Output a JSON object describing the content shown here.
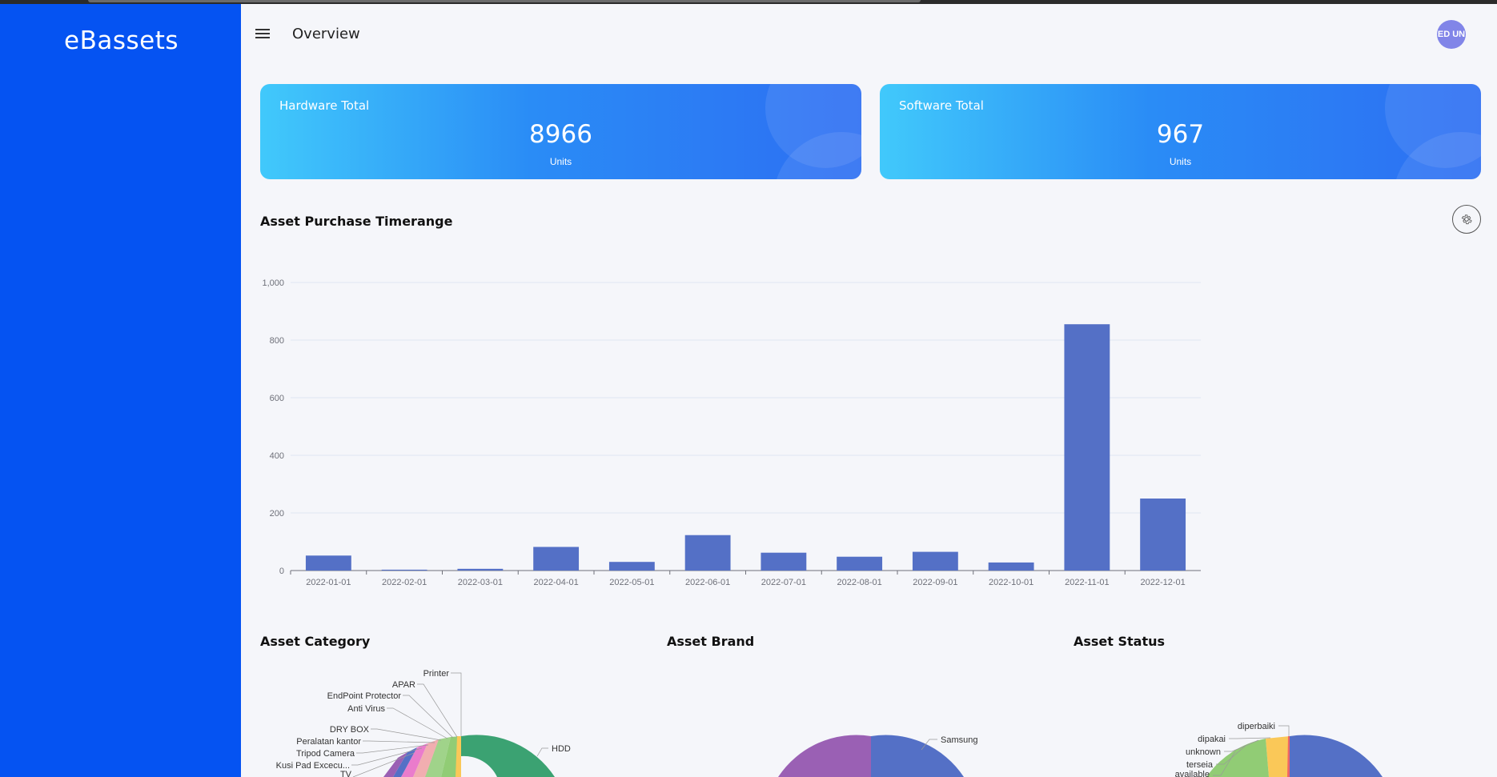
{
  "app": {
    "brand": "eBassets"
  },
  "header": {
    "title": "Overview",
    "avatar_text": "ED UN"
  },
  "cards": [
    {
      "label": "Hardware Total",
      "value": "8966",
      "unit": "Units"
    },
    {
      "label": "Software Total",
      "value": "967",
      "unit": "Units"
    }
  ],
  "sections": {
    "timerange_title": "Asset Purchase Timerange",
    "category_title": "Asset Category",
    "brand_title": "Asset Brand",
    "status_title": "Asset Status"
  },
  "icons": {
    "menu": "hamburger-icon",
    "settings": "gear-icon"
  },
  "colors": {
    "sidebar": "#0553f2",
    "bar": "#5470c6"
  },
  "chart_data": [
    {
      "type": "bar",
      "title": "Asset Purchase Timerange",
      "categories": [
        "2022-01-01",
        "2022-02-01",
        "2022-03-01",
        "2022-04-01",
        "2022-05-01",
        "2022-06-01",
        "2022-07-01",
        "2022-08-01",
        "2022-09-01",
        "2022-10-01",
        "2022-11-01",
        "2022-12-01"
      ],
      "values": [
        52,
        3,
        6,
        82,
        30,
        123,
        62,
        48,
        65,
        28,
        855,
        250
      ],
      "yticks": [
        "0",
        "200",
        "400",
        "600",
        "800",
        "1,000"
      ],
      "ylim": [
        0,
        1000
      ],
      "grid": true
    },
    {
      "type": "pie",
      "title": "Asset Category",
      "labels": [
        "Printer",
        "APAR",
        "EndPoint Protector",
        "Anti Virus",
        "DRY BOX",
        "Peralatan kantor",
        "Tripod Camera",
        "Kusi Pad Excecu...",
        "TV",
        "HDD"
      ]
    },
    {
      "type": "pie",
      "title": "Asset Brand",
      "labels": [
        "Samsung"
      ]
    },
    {
      "type": "pie",
      "title": "Asset Status",
      "labels": [
        "diperbaiki",
        "dipakai",
        "unknown",
        "terseia",
        "available"
      ]
    }
  ]
}
